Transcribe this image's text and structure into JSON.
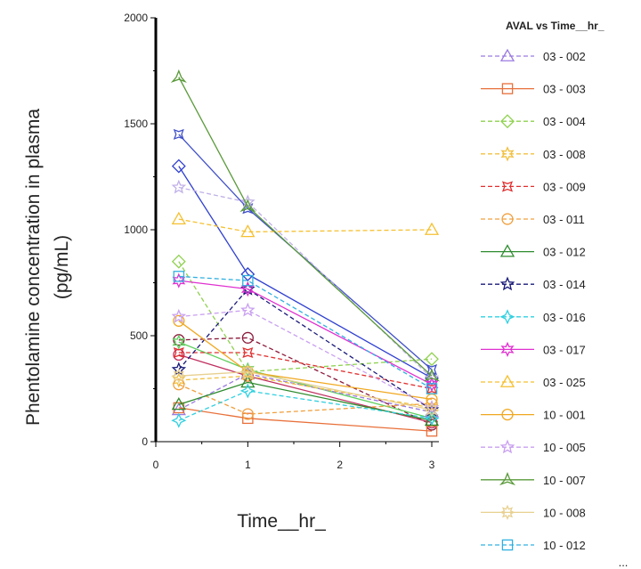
{
  "chart_data": {
    "type": "line",
    "title": "",
    "xlabel": "Time__hr_",
    "ylabel_lines": [
      "Phentolamine concentration in plasma",
      "(pg/mL)"
    ],
    "xlim": [
      0,
      3
    ],
    "ylim": [
      0,
      2000
    ],
    "x_ticks": [
      0,
      1,
      2,
      3
    ],
    "y_ticks": [
      0,
      500,
      1000,
      1500,
      2000
    ],
    "grid": false,
    "legend_title": "AVAL vs Time__hr_",
    "legend_position": "right",
    "legend_more": "...",
    "x": [
      0.25,
      1,
      3
    ],
    "series": [
      {
        "name": "03 - 002",
        "values": [
          150,
          320,
          140
        ],
        "color": "#9b7be0",
        "dash": true,
        "marker": "triangle"
      },
      {
        "name": "03 - 003",
        "values": [
          160,
          110,
          50
        ],
        "color": "#e8703a",
        "dash": false,
        "marker": "square"
      },
      {
        "name": "03 - 004",
        "values": [
          850,
          330,
          390
        ],
        "color": "#8fd14f",
        "dash": true,
        "marker": "diamond"
      },
      {
        "name": "03 - 008",
        "values": [
          290,
          310,
          160
        ],
        "color": "#f0c040",
        "dash": true,
        "marker": "star6"
      },
      {
        "name": "03 - 009",
        "values": [
          420,
          420,
          250
        ],
        "color": "#e03030",
        "dash": true,
        "marker": "cross"
      },
      {
        "name": "03 - 011",
        "values": [
          270,
          130,
          180
        ],
        "color": "#f0a040",
        "dash": true,
        "marker": "circle"
      },
      {
        "name": "03 - 012",
        "values": [
          175,
          280,
          100
        ],
        "color": "#2e8b2e",
        "dash": false,
        "marker": "triangle"
      },
      {
        "name": "03 - 014",
        "values": [
          340,
          720,
          150
        ],
        "color": "#1a1a7a",
        "dash": true,
        "marker": "star5"
      },
      {
        "name": "03 - 016",
        "values": [
          100,
          240,
          110
        ],
        "color": "#30d0e0",
        "dash": true,
        "marker": "diamond4"
      },
      {
        "name": "03 - 017",
        "values": [
          760,
          720,
          270
        ],
        "color": "#e030d0",
        "dash": false,
        "marker": "star6"
      },
      {
        "name": "03 - 025",
        "values": [
          1050,
          990,
          1000
        ],
        "color": "#f5c030",
        "dash": true,
        "marker": "triangle"
      },
      {
        "name": "10 - 001",
        "values": [
          570,
          330,
          200
        ],
        "color": "#f0a820",
        "dash": false,
        "marker": "circle"
      },
      {
        "name": "10 - 005",
        "values": [
          590,
          620,
          160
        ],
        "color": "#c9a0f0",
        "dash": true,
        "marker": "star5"
      },
      {
        "name": "10 - 007",
        "values": [
          1720,
          1110,
          310
        ],
        "color": "#5a9a3a",
        "dash": false,
        "marker": "arrow"
      },
      {
        "name": "10 - 008",
        "values": [
          310,
          330,
          150
        ],
        "color": "#e8d090",
        "dash": false,
        "marker": "star8"
      },
      {
        "name": "10 - 012",
        "values": [
          780,
          760,
          250
        ],
        "color": "#30b0e0",
        "dash": true,
        "marker": "square"
      }
    ],
    "extra_series": [
      {
        "values": [
          1450,
          1100,
          340
        ],
        "color": "#4050c8",
        "dash": false,
        "marker": "cross"
      },
      {
        "values": [
          1300,
          790,
          300
        ],
        "color": "#3040d0",
        "dash": false,
        "marker": "diamond"
      },
      {
        "values": [
          1200,
          1130,
          300
        ],
        "color": "#c0b0e8",
        "dash": true,
        "marker": "star5"
      },
      {
        "values": [
          480,
          490,
          80
        ],
        "color": "#8b1a3a",
        "dash": true,
        "marker": "circle"
      },
      {
        "values": [
          470,
          340,
          110
        ],
        "color": "#60d060",
        "dash": false,
        "marker": "star6"
      },
      {
        "values": [
          410,
          310,
          90
        ],
        "color": "#c03060",
        "dash": false,
        "marker": "circle"
      }
    ]
  }
}
